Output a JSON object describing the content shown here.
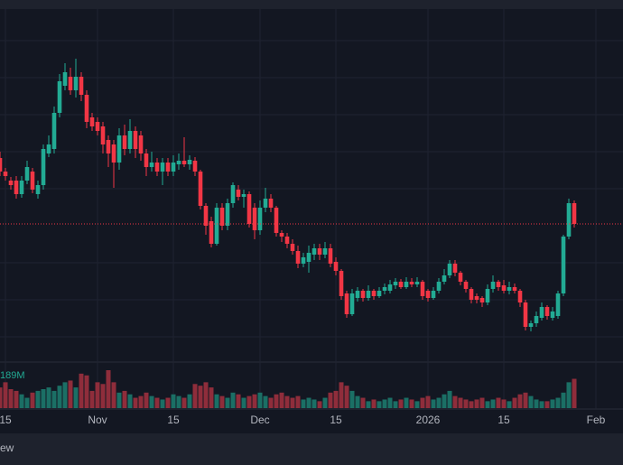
{
  "chart_data": {
    "type": "candlestick",
    "ohlc": [
      [
        225,
        232,
        205,
        210
      ],
      [
        210,
        214,
        200,
        205
      ],
      [
        200,
        204,
        190,
        195
      ],
      [
        200,
        205,
        180,
        185
      ],
      [
        185,
        205,
        181,
        200
      ],
      [
        200,
        222,
        196,
        215
      ],
      [
        210,
        214,
        186,
        190
      ],
      [
        185,
        200,
        180,
        195
      ],
      [
        195,
        240,
        190,
        235
      ],
      [
        230,
        250,
        226,
        240
      ],
      [
        235,
        282,
        230,
        275
      ],
      [
        275,
        318,
        270,
        310
      ],
      [
        305,
        330,
        300,
        320
      ],
      [
        315,
        325,
        295,
        300
      ],
      [
        300,
        335,
        292,
        315
      ],
      [
        315,
        320,
        288,
        295
      ],
      [
        295,
        300,
        258,
        265
      ],
      [
        270,
        275,
        255,
        260
      ],
      [
        265,
        270,
        250,
        255
      ],
      [
        260,
        265,
        230,
        240
      ],
      [
        245,
        250,
        215,
        230
      ],
      [
        240,
        245,
        192,
        220
      ],
      [
        220,
        258,
        212,
        250
      ],
      [
        250,
        262,
        228,
        235
      ],
      [
        235,
        268,
        230,
        255
      ],
      [
        255,
        260,
        225,
        235
      ],
      [
        250,
        255,
        222,
        230
      ],
      [
        230,
        235,
        205,
        215
      ],
      [
        215,
        232,
        210,
        220
      ],
      [
        220,
        225,
        205,
        210
      ],
      [
        210,
        225,
        195,
        220
      ],
      [
        220,
        225,
        205,
        210
      ],
      [
        210,
        228,
        205,
        220
      ],
      [
        218,
        230,
        212,
        222
      ],
      [
        222,
        248,
        215,
        218
      ],
      [
        218,
        228,
        212,
        223
      ],
      [
        222,
        226,
        205,
        210
      ],
      [
        210,
        212,
        168,
        172
      ],
      [
        172,
        175,
        140,
        150
      ],
      [
        155,
        160,
        126,
        130
      ],
      [
        130,
        175,
        128,
        170
      ],
      [
        170,
        175,
        145,
        150
      ],
      [
        150,
        180,
        145,
        175
      ],
      [
        175,
        198,
        170,
        195
      ],
      [
        190,
        195,
        178,
        182
      ],
      [
        182,
        190,
        170,
        185
      ],
      [
        185,
        188,
        148,
        152
      ],
      [
        170,
        175,
        135,
        145
      ],
      [
        145,
        178,
        140,
        170
      ],
      [
        170,
        192,
        165,
        180
      ],
      [
        180,
        185,
        165,
        170
      ],
      [
        170,
        172,
        138,
        142
      ],
      [
        142,
        145,
        132,
        138
      ],
      [
        138,
        142,
        125,
        130
      ],
      [
        130,
        135,
        118,
        122
      ],
      [
        122,
        128,
        103,
        108
      ],
      [
        108,
        120,
        104,
        115
      ],
      [
        110,
        128,
        98,
        120
      ],
      [
        118,
        130,
        112,
        125
      ],
      [
        125,
        130,
        112,
        118
      ],
      [
        118,
        132,
        114,
        125
      ],
      [
        125,
        130,
        104,
        108
      ],
      [
        110,
        115,
        95,
        100
      ],
      [
        100,
        102,
        68,
        72
      ],
      [
        75,
        78,
        48,
        52
      ],
      [
        52,
        80,
        50,
        75
      ],
      [
        70,
        82,
        66,
        78
      ],
      [
        78,
        80,
        66,
        70
      ],
      [
        70,
        84,
        67,
        78
      ],
      [
        78,
        80,
        68,
        72
      ],
      [
        72,
        82,
        70,
        78
      ],
      [
        78,
        86,
        74,
        82
      ],
      [
        78,
        90,
        75,
        85
      ],
      [
        84,
        92,
        80,
        88
      ],
      [
        88,
        91,
        80,
        82
      ],
      [
        82,
        93,
        80,
        88
      ],
      [
        88,
        92,
        82,
        85
      ],
      [
        85,
        93,
        82,
        88
      ],
      [
        88,
        90,
        68,
        72
      ],
      [
        78,
        80,
        66,
        70
      ],
      [
        70,
        82,
        68,
        78
      ],
      [
        78,
        92,
        75,
        88
      ],
      [
        88,
        102,
        85,
        95
      ],
      [
        95,
        112,
        92,
        108
      ],
      [
        108,
        112,
        94,
        98
      ],
      [
        98,
        100,
        84,
        88
      ],
      [
        88,
        90,
        76,
        80
      ],
      [
        80,
        82,
        64,
        68
      ],
      [
        72,
        75,
        64,
        68
      ],
      [
        70,
        72,
        60,
        65
      ],
      [
        65,
        85,
        62,
        80
      ],
      [
        80,
        95,
        76,
        88
      ],
      [
        88,
        90,
        78,
        82
      ],
      [
        84,
        90,
        75,
        78
      ],
      [
        78,
        88,
        74,
        82
      ],
      [
        82,
        86,
        75,
        78
      ],
      [
        78,
        80,
        60,
        65
      ],
      [
        65,
        68,
        34,
        38
      ],
      [
        38,
        45,
        33,
        42
      ],
      [
        42,
        55,
        38,
        50
      ],
      [
        48,
        65,
        45,
        60
      ],
      [
        60,
        62,
        46,
        50
      ],
      [
        48,
        60,
        45,
        55
      ],
      [
        50,
        78,
        47,
        75
      ],
      [
        75,
        140,
        72,
        138
      ],
      [
        138,
        180,
        135,
        175
      ],
      [
        175,
        178,
        148,
        152
      ]
    ],
    "volume": [
      120,
      150,
      110,
      100,
      80,
      60,
      90,
      100,
      110,
      120,
      100,
      130,
      150,
      160,
      120,
      200,
      190,
      100,
      150,
      140,
      220,
      150,
      90,
      100,
      80,
      60,
      70,
      90,
      70,
      60,
      50,
      60,
      80,
      70,
      60,
      80,
      140,
      130,
      150,
      120,
      80,
      70,
      60,
      90,
      80,
      60,
      70,
      80,
      90,
      70,
      60,
      80,
      90,
      70,
      60,
      70,
      50,
      60,
      50,
      40,
      60,
      90,
      100,
      150,
      130,
      100,
      70,
      60,
      40,
      50,
      40,
      50,
      60,
      40,
      50,
      60,
      50,
      40,
      60,
      70,
      50,
      60,
      80,
      100,
      70,
      60,
      50,
      40,
      50,
      60,
      40,
      50,
      60,
      50,
      40,
      60,
      80,
      90,
      70,
      50,
      40,
      40,
      50,
      60,
      90,
      150,
      170
    ],
    "volume_label": "189M",
    "ylim": [
      0,
      390
    ],
    "volume_lim": [
      0,
      220
    ],
    "xticks": [
      {
        "value": 1,
        "label": "15"
      },
      {
        "value": 18,
        "label": "Nov"
      },
      {
        "value": 32,
        "label": "15"
      },
      {
        "value": 48,
        "label": "Dec"
      },
      {
        "value": 62,
        "label": "15"
      },
      {
        "value": 79,
        "label": "2026"
      },
      {
        "value": 93,
        "label": "15"
      },
      {
        "value": 110,
        "label": "Feb"
      }
    ],
    "up_color": "#22ab94",
    "down_color": "#f23645",
    "volume_up_color": "#1b6f65",
    "volume_down_color": "#8f2d3b",
    "footer_text": "ew"
  }
}
